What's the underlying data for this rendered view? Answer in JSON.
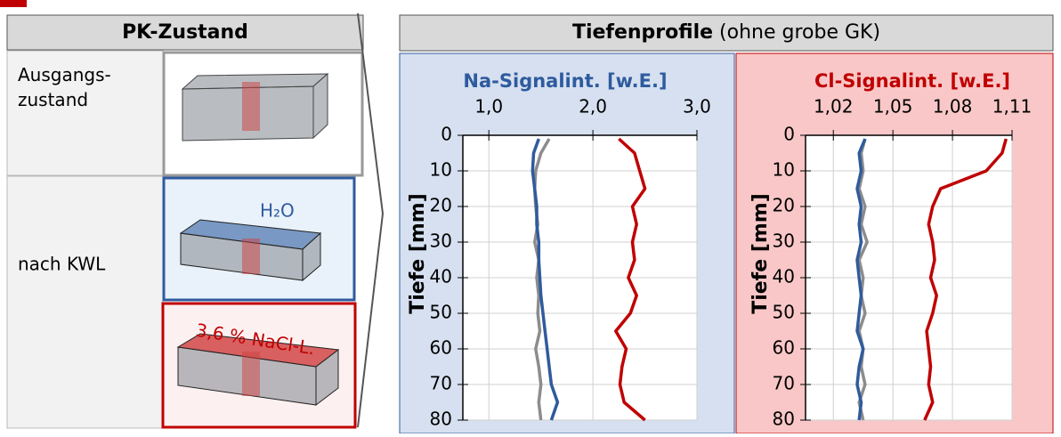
{
  "left_panel": {
    "header": "PK-Zustand",
    "rows": [
      "Ausgangs-\nzustand",
      "nach KWL"
    ],
    "labels": [
      "H₂O",
      "3,6 % NaCl-L."
    ]
  },
  "right_header": {
    "title": "Tiefenprofile",
    "subtitle": "(ohne grobe GK)"
  },
  "chart_data": [
    {
      "type": "line",
      "title": "Na-Signalint. [w.E.]",
      "y_label": "Tiefe [mm]",
      "y": [
        1,
        5,
        10,
        15,
        20,
        25,
        30,
        35,
        40,
        45,
        50,
        55,
        60,
        65,
        70,
        75,
        80
      ],
      "series": [
        {
          "color": "#8c8c8c",
          "values": [
            1.58,
            1.5,
            1.45,
            1.44,
            1.45,
            1.47,
            1.44,
            1.48,
            1.46,
            1.48,
            1.47,
            1.49,
            1.45,
            1.48,
            1.5,
            1.48,
            1.5
          ]
        },
        {
          "color": "#2f5b9e",
          "values": [
            1.48,
            1.43,
            1.42,
            1.44,
            1.46,
            1.46,
            1.48,
            1.48,
            1.49,
            1.5,
            1.52,
            1.54,
            1.56,
            1.58,
            1.6,
            1.66,
            1.6
          ]
        },
        {
          "color": "#c00000",
          "values": [
            2.25,
            2.4,
            2.45,
            2.5,
            2.38,
            2.42,
            2.38,
            2.4,
            2.34,
            2.42,
            2.36,
            2.22,
            2.32,
            2.28,
            2.26,
            2.3,
            2.5
          ]
        }
      ],
      "xlim": [
        0.75,
        3.0
      ],
      "xticks": [
        {
          "value": 1.0,
          "label": "1,0"
        },
        {
          "value": 2.0,
          "label": "2,0"
        },
        {
          "value": 3.0,
          "label": "3,0"
        }
      ],
      "ylim": [
        0,
        80
      ],
      "yticks": [
        0,
        10,
        20,
        30,
        40,
        50,
        60,
        70,
        80
      ],
      "grid": true
    },
    {
      "type": "line",
      "title": "Cl-Signalint. [w.E.]",
      "y_label": "Tiefe [mm]",
      "y": [
        1,
        5,
        10,
        15,
        20,
        25,
        30,
        35,
        40,
        45,
        50,
        55,
        60,
        65,
        70,
        75,
        80
      ],
      "series": [
        {
          "color": "#8c8c8c",
          "values": [
            1.036,
            1.034,
            1.035,
            1.033,
            1.036,
            1.034,
            1.037,
            1.033,
            1.035,
            1.034,
            1.036,
            1.033,
            1.035,
            1.034,
            1.036,
            1.033,
            1.035
          ]
        },
        {
          "color": "#2f5b9e",
          "values": [
            1.036,
            1.033,
            1.034,
            1.032,
            1.034,
            1.033,
            1.034,
            1.032,
            1.033,
            1.034,
            1.033,
            1.032,
            1.035,
            1.033,
            1.032,
            1.034,
            1.033
          ]
        },
        {
          "color": "#c00000",
          "values": [
            1.107,
            1.105,
            1.097,
            1.074,
            1.07,
            1.068,
            1.07,
            1.071,
            1.069,
            1.072,
            1.07,
            1.067,
            1.068,
            1.069,
            1.068,
            1.07,
            1.066
          ]
        }
      ],
      "xlim": [
        1.006,
        1.11
      ],
      "xticks": [
        {
          "value": 1.02,
          "label": "1,02"
        },
        {
          "value": 1.05,
          "label": "1,05"
        },
        {
          "value": 1.08,
          "label": "1,08"
        },
        {
          "value": 1.11,
          "label": "1,11"
        }
      ],
      "ylim": [
        0,
        80
      ],
      "yticks": [
        0,
        10,
        20,
        30,
        40,
        50,
        60,
        70,
        80
      ],
      "grid": true
    }
  ]
}
